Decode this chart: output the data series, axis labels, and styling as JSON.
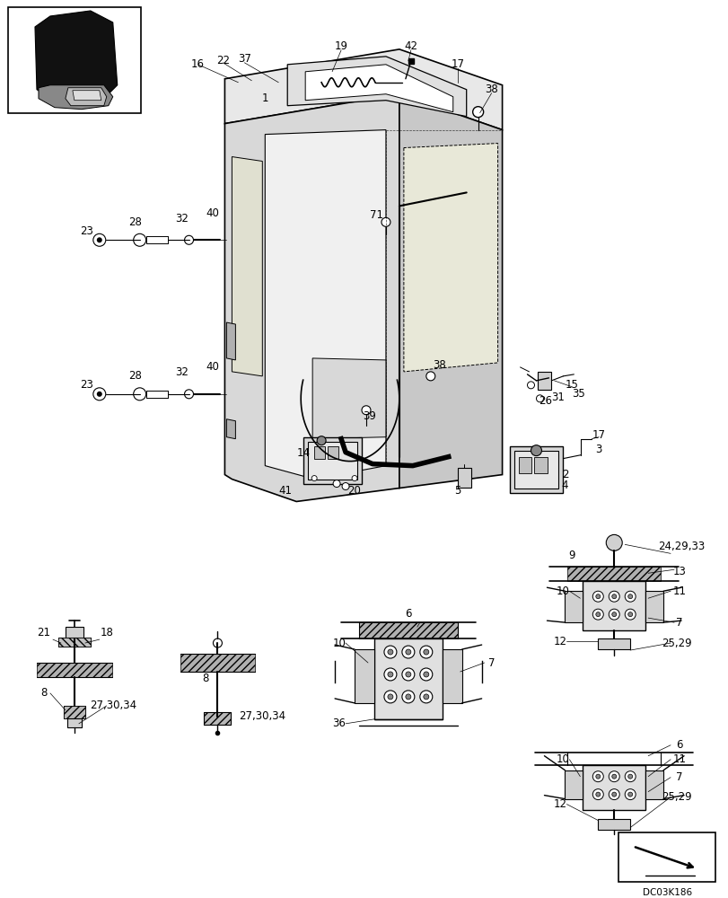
{
  "bg_color": "#ffffff",
  "fig_width": 8.12,
  "fig_height": 10.0,
  "dpi": 100,
  "watermark": "DC03K186"
}
